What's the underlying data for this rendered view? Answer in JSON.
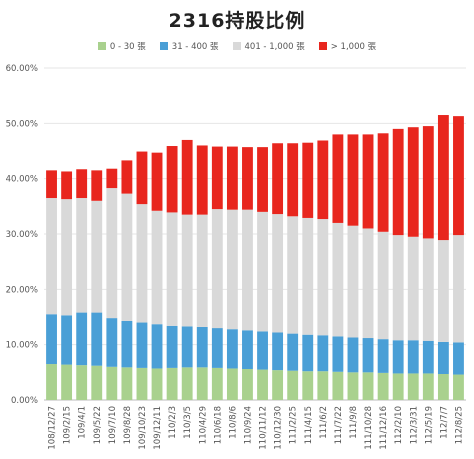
{
  "chart_data": {
    "type": "bar",
    "stacked": true,
    "title": "2316持股比例",
    "xlabel": "",
    "ylabel": "",
    "ylim": [
      0,
      60
    ],
    "yticks": [
      "0.00%",
      "10.00%",
      "20.00%",
      "30.00%",
      "40.00%",
      "50.00%",
      "60.00%"
    ],
    "grid": true,
    "legend_position": "top",
    "series": [
      {
        "name": "0 - 30 張",
        "color": "#a9d18e"
      },
      {
        "name": "31 - 400 張",
        "color": "#4a9fd6"
      },
      {
        "name": "401 - 1,000 張",
        "color": "#d9d9d9"
      },
      {
        "name": "> 1,000 張",
        "color": "#e8261e"
      }
    ],
    "x": [
      "108/12/27",
      "109/2/15",
      "109/4/1",
      "109/5/22",
      "109/7/10",
      "109/8/28",
      "109/10/23",
      "109/12/11",
      "110/2/3",
      "110/3/5",
      "110/4/29",
      "110/6/18",
      "110/8/6",
      "110/9/24",
      "110/11/12",
      "110/12/30",
      "111/2/25",
      "111/4/15",
      "111/6/2",
      "111/7/22",
      "111/9/8",
      "111/10/28",
      "111/12/16",
      "112/2/10",
      "112/3/31",
      "112/5/19",
      "112/7/7",
      "112/8/25"
    ],
    "values": {
      "0 - 30 張": [
        6.5,
        6.4,
        6.3,
        6.2,
        6.0,
        5.9,
        5.8,
        5.7,
        5.8,
        5.9,
        5.9,
        5.8,
        5.7,
        5.6,
        5.5,
        5.4,
        5.3,
        5.2,
        5.2,
        5.1,
        5.0,
        5.0,
        4.9,
        4.8,
        4.8,
        4.8,
        4.7,
        4.6
      ],
      "31 - 400 張": [
        9.0,
        8.9,
        9.5,
        9.6,
        8.8,
        8.4,
        8.2,
        8.0,
        7.6,
        7.4,
        7.3,
        7.2,
        7.1,
        7.0,
        6.9,
        6.8,
        6.7,
        6.6,
        6.5,
        6.4,
        6.3,
        6.2,
        6.1,
        6.0,
        6.0,
        5.9,
        5.8,
        5.8
      ],
      "401 - 1,000 張": [
        21.0,
        21.0,
        20.7,
        20.2,
        23.5,
        23.0,
        21.4,
        20.5,
        20.5,
        20.2,
        20.3,
        21.5,
        21.6,
        21.8,
        21.6,
        21.4,
        21.2,
        21.1,
        21.0,
        20.5,
        20.2,
        19.8,
        19.4,
        19.0,
        18.7,
        18.5,
        18.4,
        19.4
      ],
      "> 1,000 張": [
        5.0,
        5.0,
        5.2,
        5.5,
        3.5,
        6.0,
        9.5,
        10.5,
        12.0,
        13.5,
        12.5,
        11.3,
        11.4,
        11.3,
        11.7,
        12.8,
        13.2,
        13.6,
        14.2,
        16.0,
        16.5,
        17.0,
        17.8,
        19.2,
        19.8,
        20.3,
        22.6,
        21.5
      ]
    }
  }
}
